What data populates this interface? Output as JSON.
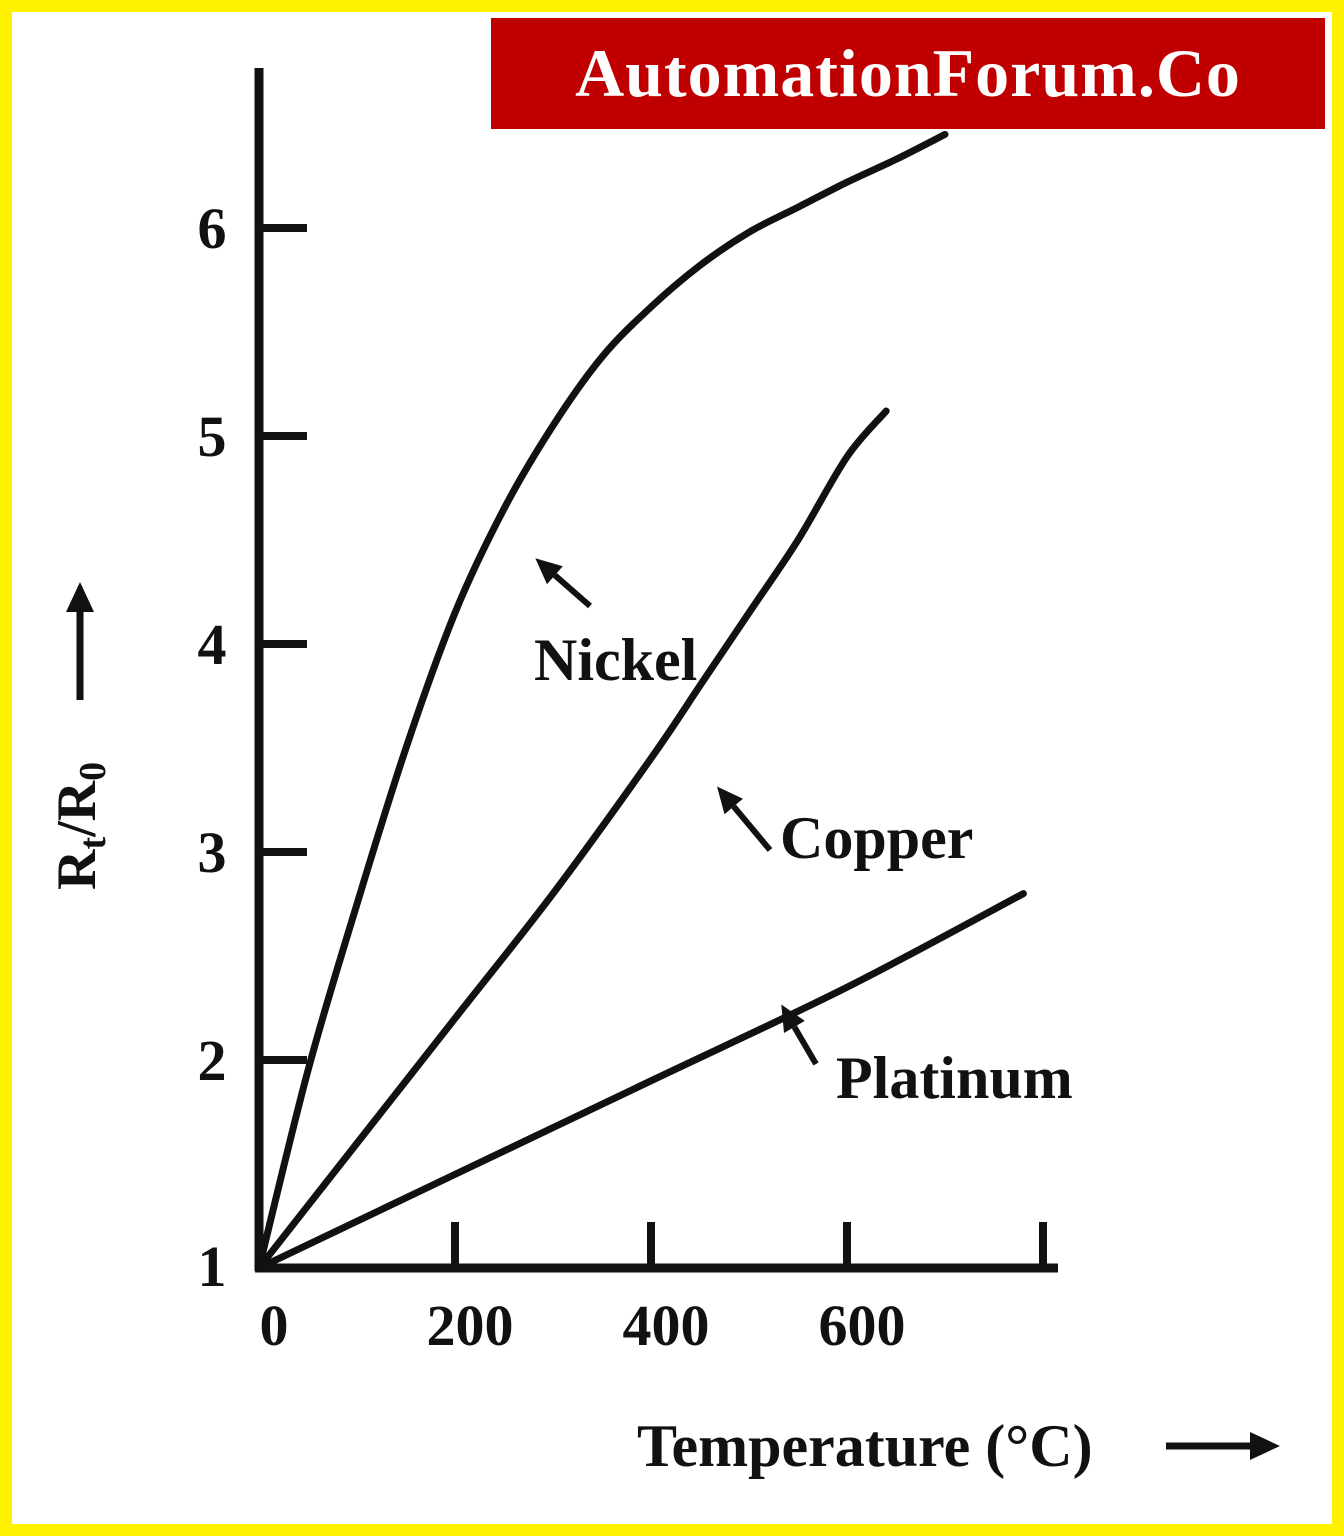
{
  "brand": {
    "text": "AutomationForum.Co",
    "background": "#c00000",
    "color": "#ffffff"
  },
  "frame": {
    "border_color": "#fff200"
  },
  "chart_data": {
    "type": "line",
    "title": "",
    "xlabel": "Temperature (°C)",
    "ylabel": "Rt/R0",
    "ylabel_main": "R",
    "ylabel_sub1": "t",
    "ylabel_sep": "/R",
    "ylabel_sub2": "0",
    "xlim": [
      0,
      800
    ],
    "ylim": [
      1,
      6.8
    ],
    "x_ticks": [
      200,
      400,
      600,
      800
    ],
    "x_tick_labels": [
      "0",
      "200",
      "400",
      "600"
    ],
    "y_ticks": [
      2,
      3,
      4,
      5,
      6
    ],
    "y_tick_labels": [
      "1",
      "2",
      "3",
      "4",
      "5",
      "6"
    ],
    "grid": false,
    "line_color": "#111111",
    "series": [
      {
        "name": "Nickel",
        "x": [
          0,
          50,
          100,
          150,
          200,
          250,
          300,
          350,
          400,
          450,
          500,
          550,
          600,
          650,
          700
        ],
        "y": [
          1,
          1.95,
          2.75,
          3.5,
          4.15,
          4.65,
          5.05,
          5.38,
          5.62,
          5.82,
          5.98,
          6.1,
          6.22,
          6.33,
          6.45
        ]
      },
      {
        "name": "Copper",
        "x": [
          0,
          100,
          200,
          300,
          400,
          450,
          500,
          550,
          600,
          640
        ],
        "y": [
          1,
          1.6,
          2.2,
          2.8,
          3.45,
          3.8,
          4.15,
          4.5,
          4.9,
          5.12
        ]
      },
      {
        "name": "Platinum",
        "x": [
          0,
          200,
          400,
          600,
          780
        ],
        "y": [
          1,
          1.45,
          1.9,
          2.35,
          2.8
        ]
      }
    ],
    "annotations": [
      {
        "text": "Nickel",
        "series": "Nickel",
        "x": 285,
        "y": 4.4
      },
      {
        "text": "Copper",
        "series": "Copper",
        "x": 470,
        "y": 3.3
      },
      {
        "text": "Platinum",
        "series": "Platinum",
        "x": 535,
        "y": 2.25
      }
    ]
  }
}
